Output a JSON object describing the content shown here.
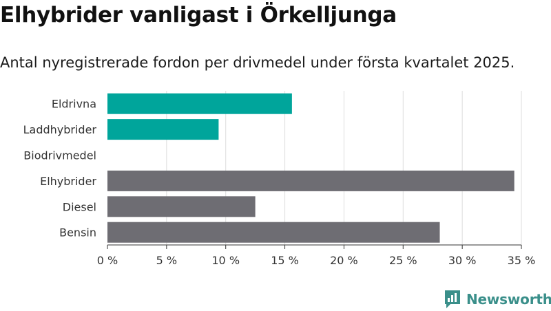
{
  "title": "Elhybrider vanligast i Örkelljunga",
  "subtitle": "Antal nyregistrerade fordon per drivmedel under första kvartalet 2025.",
  "brand": {
    "name": "Newsworthy",
    "icon": "newsworthy-logo-icon",
    "color": "#3a8f8a"
  },
  "chart_data": {
    "type": "bar",
    "orientation": "horizontal",
    "categories": [
      "Eldrivna",
      "Laddhybrider",
      "Biodrivmedel",
      "Elhybrider",
      "Diesel",
      "Bensin"
    ],
    "values": [
      15.6,
      9.4,
      0,
      34.4,
      12.5,
      28.1
    ],
    "colors": [
      "#00a59b",
      "#00a59b",
      "#00a59b",
      "#6e6d73",
      "#6e6d73",
      "#6e6d73"
    ],
    "xlim": [
      0,
      35
    ],
    "ticks": [
      0,
      5,
      10,
      15,
      20,
      25,
      30,
      35
    ],
    "tick_labels": [
      "0 %",
      "5 %",
      "10 %",
      "15 %",
      "20 %",
      "25 %",
      "30 %",
      "35 %"
    ],
    "grid": true,
    "xlabel": "",
    "ylabel": ""
  }
}
